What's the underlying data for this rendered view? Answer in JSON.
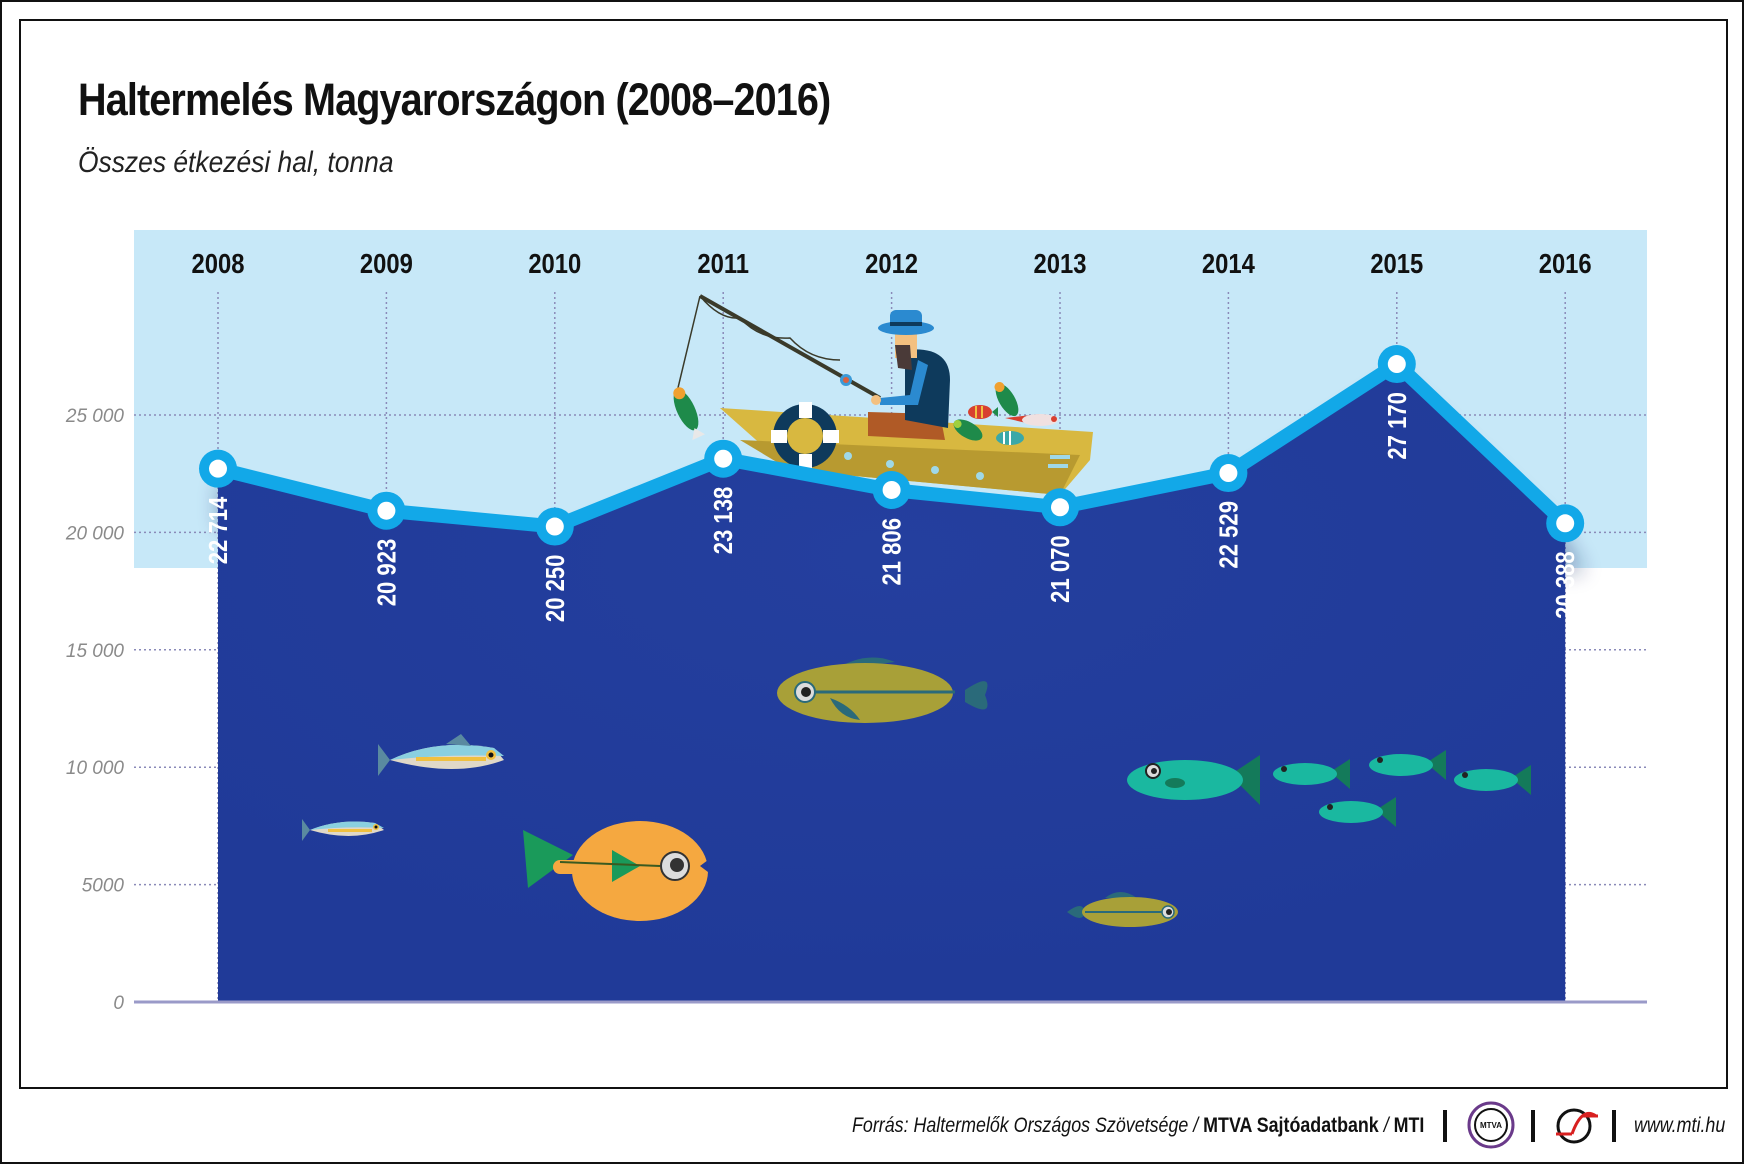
{
  "header": {
    "title": "Haltermelés Magyarországon (2008–2016)",
    "subtitle": "Összes étkezési hal, tonna"
  },
  "footer": {
    "source_prefix": "Forrás: Haltermelők Országos Szövetsége / ",
    "source_bold": "MTVA Sajtóadatbank",
    "source_sep": " / ",
    "source_mti": "MTI",
    "mtva_logo_text": "MTVA",
    "url": "www.mti.hu"
  },
  "colors": {
    "area_fill": "#213c9a",
    "line": "#12a8e8",
    "band": "#c7e8f8",
    "axis": "#9a9ac8",
    "grid": "#8a8ab8",
    "tick_label": "#8a8a8a"
  },
  "chart_data": {
    "type": "area",
    "title": "Haltermelés Magyarországon (2008–2016)",
    "subtitle": "Összes étkezési hal, tonna",
    "xlabel": "",
    "ylabel": "tonna",
    "categories": [
      "2008",
      "2009",
      "2010",
      "2011",
      "2012",
      "2013",
      "2014",
      "2015",
      "2016"
    ],
    "values": [
      22714,
      20923,
      20250,
      23138,
      21806,
      21070,
      22529,
      27170,
      20388
    ],
    "value_labels": [
      "22 714",
      "20 923",
      "20 250",
      "23 138",
      "21 806",
      "21 070",
      "22 529",
      "27 170",
      "20 388"
    ],
    "yticks": [
      0,
      5000,
      10000,
      15000,
      20000,
      25000
    ],
    "ytick_labels": [
      "0",
      "5000",
      "10 000",
      "15 000",
      "20 000",
      "25 000"
    ],
    "ylim": [
      0,
      28000
    ],
    "grid": true,
    "legend": null
  }
}
